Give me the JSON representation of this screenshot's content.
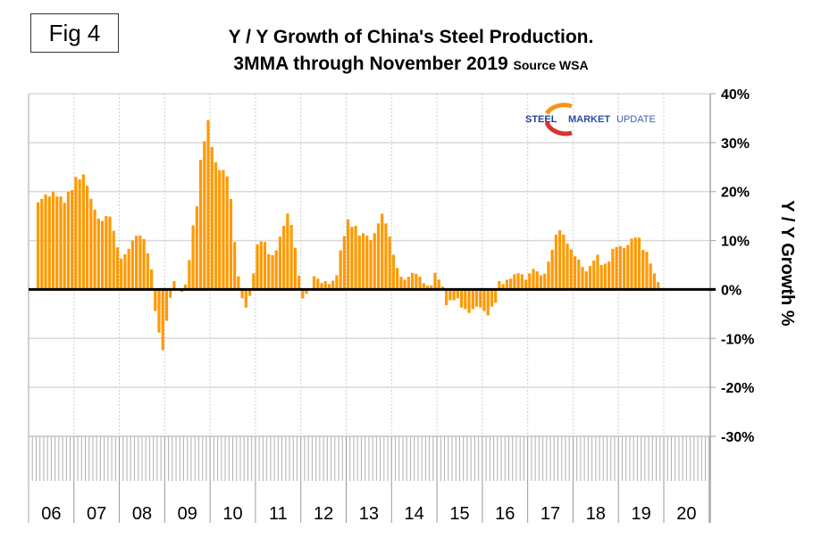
{
  "figure_label": "Fig 4",
  "title_line1": "Y / Y Growth of China's Steel Production.",
  "title_line2": "3MMA through November 2019",
  "source_label": "Source WSA",
  "logo": {
    "strong": "STEEL",
    "mid": "MARKET",
    "light": "UPDATE"
  },
  "colors": {
    "bar": "#ff9900",
    "zero_line": "#000000",
    "grid": "#d9d9d9",
    "axis": "#a6a6a6",
    "logo_arc_orange": "#f7941d",
    "logo_arc_red": "#d9342b"
  },
  "chart_data": {
    "type": "bar",
    "title": "Y / Y Growth of China's Steel Production. 3MMA through November 2019",
    "subtitle": "Source WSA",
    "xlabel": "",
    "ylabel": "Y / Y Growth %",
    "ylim": [
      -30,
      40
    ],
    "yticks": [
      40,
      30,
      20,
      10,
      0,
      -10,
      -20,
      -30
    ],
    "ytick_labels": [
      "40%",
      "30%",
      "20%",
      "10%",
      "0%",
      "-10%",
      "-20%",
      "-30%"
    ],
    "xtick_labels": [
      "06",
      "07",
      "08",
      "09",
      "10",
      "11",
      "12",
      "13",
      "14",
      "15",
      "16",
      "17",
      "18",
      "19",
      "20"
    ],
    "x_start": "2006-03",
    "x_end": "2019-11",
    "frequency": "monthly",
    "grid": true,
    "legend": "none",
    "y_axis_side": "right",
    "series": [
      {
        "name": "Y/Y growth 3MMA (%)",
        "values": [
          17.8,
          18.5,
          19.4,
          19.0,
          20.0,
          19.0,
          19.0,
          17.7,
          20.0,
          20.3,
          23.0,
          22.5,
          23.5,
          21.2,
          18.5,
          16.3,
          14.5,
          14.0,
          15.0,
          14.9,
          12.0,
          8.6,
          6.3,
          7.2,
          8.3,
          10.0,
          11.0,
          11.0,
          10.3,
          7.4,
          4.1,
          -4.4,
          -8.8,
          -12.4,
          -6.4,
          -1.7,
          1.7,
          0.0,
          -0.5,
          1.0,
          6.0,
          13.1,
          17.0,
          26.5,
          30.3,
          34.6,
          29.1,
          26.0,
          24.4,
          24.4,
          23.1,
          18.5,
          9.7,
          2.7,
          -1.8,
          -3.7,
          -1.3,
          3.3,
          9.2,
          9.8,
          9.7,
          7.2,
          7.0,
          8.0,
          10.8,
          13.0,
          15.5,
          13.2,
          8.5,
          2.8,
          -1.8,
          -0.9,
          0.0,
          2.7,
          2.2,
          1.3,
          1.7,
          1.1,
          1.8,
          2.9,
          8.0,
          10.9,
          14.3,
          12.8,
          13.0,
          11.0,
          11.5,
          11.0,
          10.1,
          11.5,
          13.5,
          15.5,
          13.5,
          10.8,
          7.1,
          4.4,
          2.6,
          2.0,
          2.6,
          3.4,
          3.2,
          2.6,
          1.3,
          0.8,
          0.8,
          3.4,
          2.0,
          0.6,
          -3.2,
          -2.2,
          -2.2,
          -1.8,
          -3.7,
          -4.0,
          -4.8,
          -4.0,
          -3.5,
          -3.7,
          -4.4,
          -5.3,
          -3.5,
          -2.7,
          1.7,
          1.1,
          2.0,
          2.2,
          3.1,
          3.3,
          3.1,
          2.0,
          3.3,
          4.2,
          3.7,
          2.9,
          3.2,
          5.7,
          8.1,
          11.2,
          12.1,
          11.2,
          9.4,
          8.2,
          6.8,
          6.1,
          4.6,
          3.7,
          4.8,
          5.9,
          7.1,
          5.0,
          5.3,
          5.7,
          8.3,
          8.7,
          8.9,
          8.5,
          9.1,
          10.4,
          10.6,
          10.6,
          8.1,
          7.7,
          5.3,
          3.3,
          1.5
        ]
      }
    ]
  }
}
